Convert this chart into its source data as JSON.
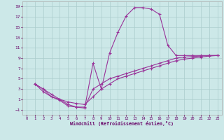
{
  "xlabel": "Windchill (Refroidissement éolien,°C)",
  "bg_color": "#cce8e8",
  "grid_color": "#aacccc",
  "line_color": "#993399",
  "xlim": [
    -0.5,
    23.5
  ],
  "ylim": [
    -2,
    20
  ],
  "xticks": [
    0,
    1,
    2,
    3,
    4,
    5,
    6,
    7,
    8,
    9,
    10,
    11,
    12,
    13,
    14,
    15,
    16,
    17,
    18,
    19,
    20,
    21,
    22,
    23
  ],
  "yticks": [
    -1,
    1,
    3,
    5,
    7,
    9,
    11,
    13,
    15,
    17,
    19
  ],
  "line1_x": [
    1,
    2,
    3,
    4,
    5,
    6,
    7,
    8,
    9,
    10,
    11,
    12,
    13,
    14,
    15,
    16,
    17,
    18,
    19,
    20,
    21,
    22,
    23
  ],
  "line1_y": [
    4.0,
    3.0,
    2.0,
    1.0,
    0.0,
    -0.5,
    -0.7,
    8.0,
    3.0,
    10.0,
    14.0,
    17.2,
    18.8,
    18.8,
    18.5,
    17.5,
    11.5,
    9.5,
    9.5,
    9.5,
    9.5,
    9.5,
    9.5
  ],
  "line2_x": [
    1,
    2,
    3,
    4,
    5,
    6,
    7,
    8,
    9,
    10,
    11,
    12,
    13,
    14,
    15,
    16,
    17,
    18,
    19,
    20,
    21,
    22,
    23
  ],
  "line2_y": [
    4.0,
    3.0,
    1.5,
    0.8,
    -0.3,
    -0.5,
    -0.5,
    3.0,
    4.0,
    5.0,
    5.5,
    6.0,
    6.5,
    7.0,
    7.5,
    8.0,
    8.5,
    9.0,
    9.2,
    9.3,
    9.4,
    9.5,
    9.5
  ],
  "line3_x": [
    1,
    2,
    3,
    4,
    5,
    6,
    7,
    8,
    9,
    10,
    11,
    12,
    13,
    14,
    15,
    16,
    17,
    18,
    19,
    20,
    21,
    22,
    23
  ],
  "line3_y": [
    4.0,
    2.5,
    1.5,
    1.0,
    0.5,
    0.2,
    0.0,
    1.5,
    3.0,
    4.0,
    5.0,
    5.5,
    6.0,
    6.5,
    7.0,
    7.5,
    8.0,
    8.5,
    8.8,
    9.0,
    9.2,
    9.4,
    9.5
  ]
}
